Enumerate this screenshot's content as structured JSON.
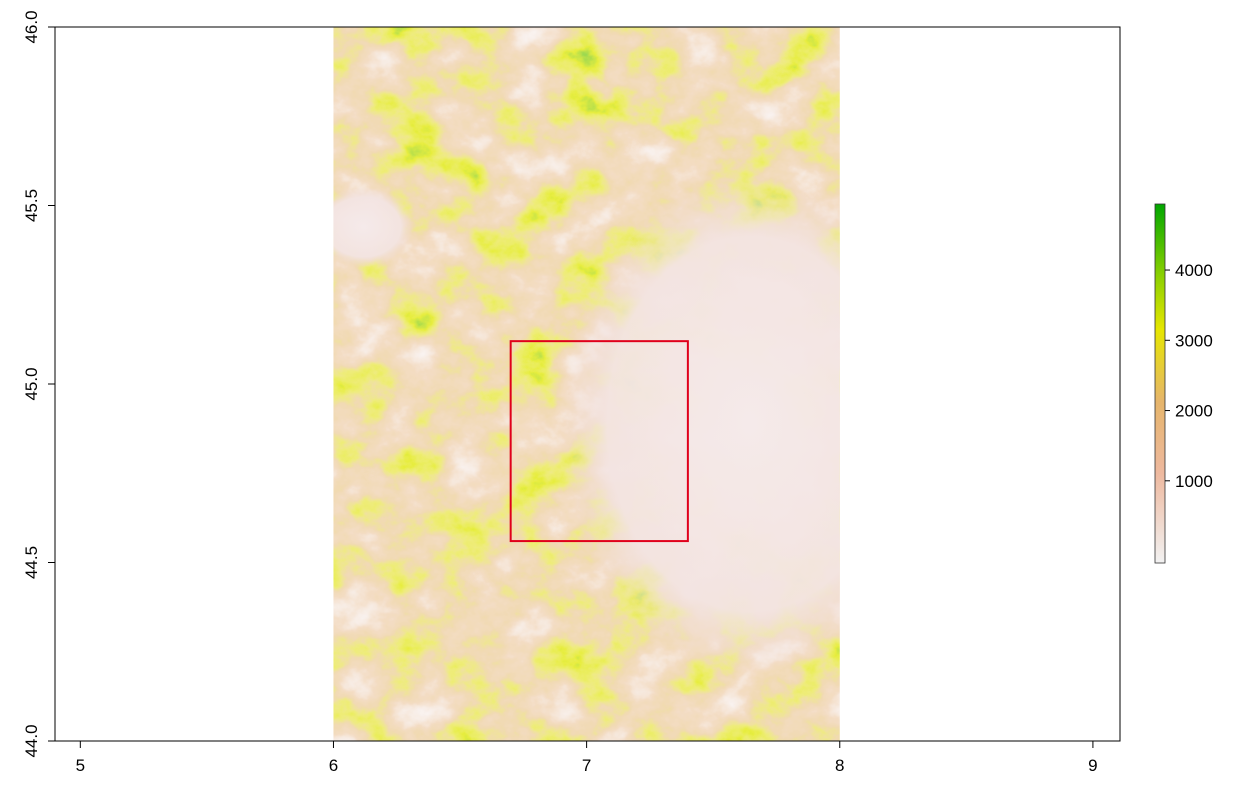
{
  "chart_data": {
    "type": "raster",
    "xlim": [
      4.9,
      9.107
    ],
    "ylim": [
      44.0,
      46.0
    ],
    "xticks": [
      5,
      6,
      7,
      8,
      9
    ],
    "yticks": [
      {
        "value": 44,
        "label": "44.0"
      },
      {
        "value": 44.5,
        "label": "44.5"
      },
      {
        "value": 45,
        "label": "45.0"
      },
      {
        "value": 45.5,
        "label": "45.5"
      },
      {
        "value": 46,
        "label": "46.0"
      }
    ],
    "raster": {
      "xmin": 6,
      "xmax": 8,
      "ymin": 44,
      "ymax": 46
    },
    "rectangle": {
      "xmin": 6.7,
      "xmax": 7.4,
      "ymin": 44.56,
      "ymax": 45.12,
      "color": "#e0001b"
    },
    "zlim": [
      -170,
      4940
    ],
    "zticks": [
      1000,
      2000,
      3000,
      4000
    ]
  }
}
